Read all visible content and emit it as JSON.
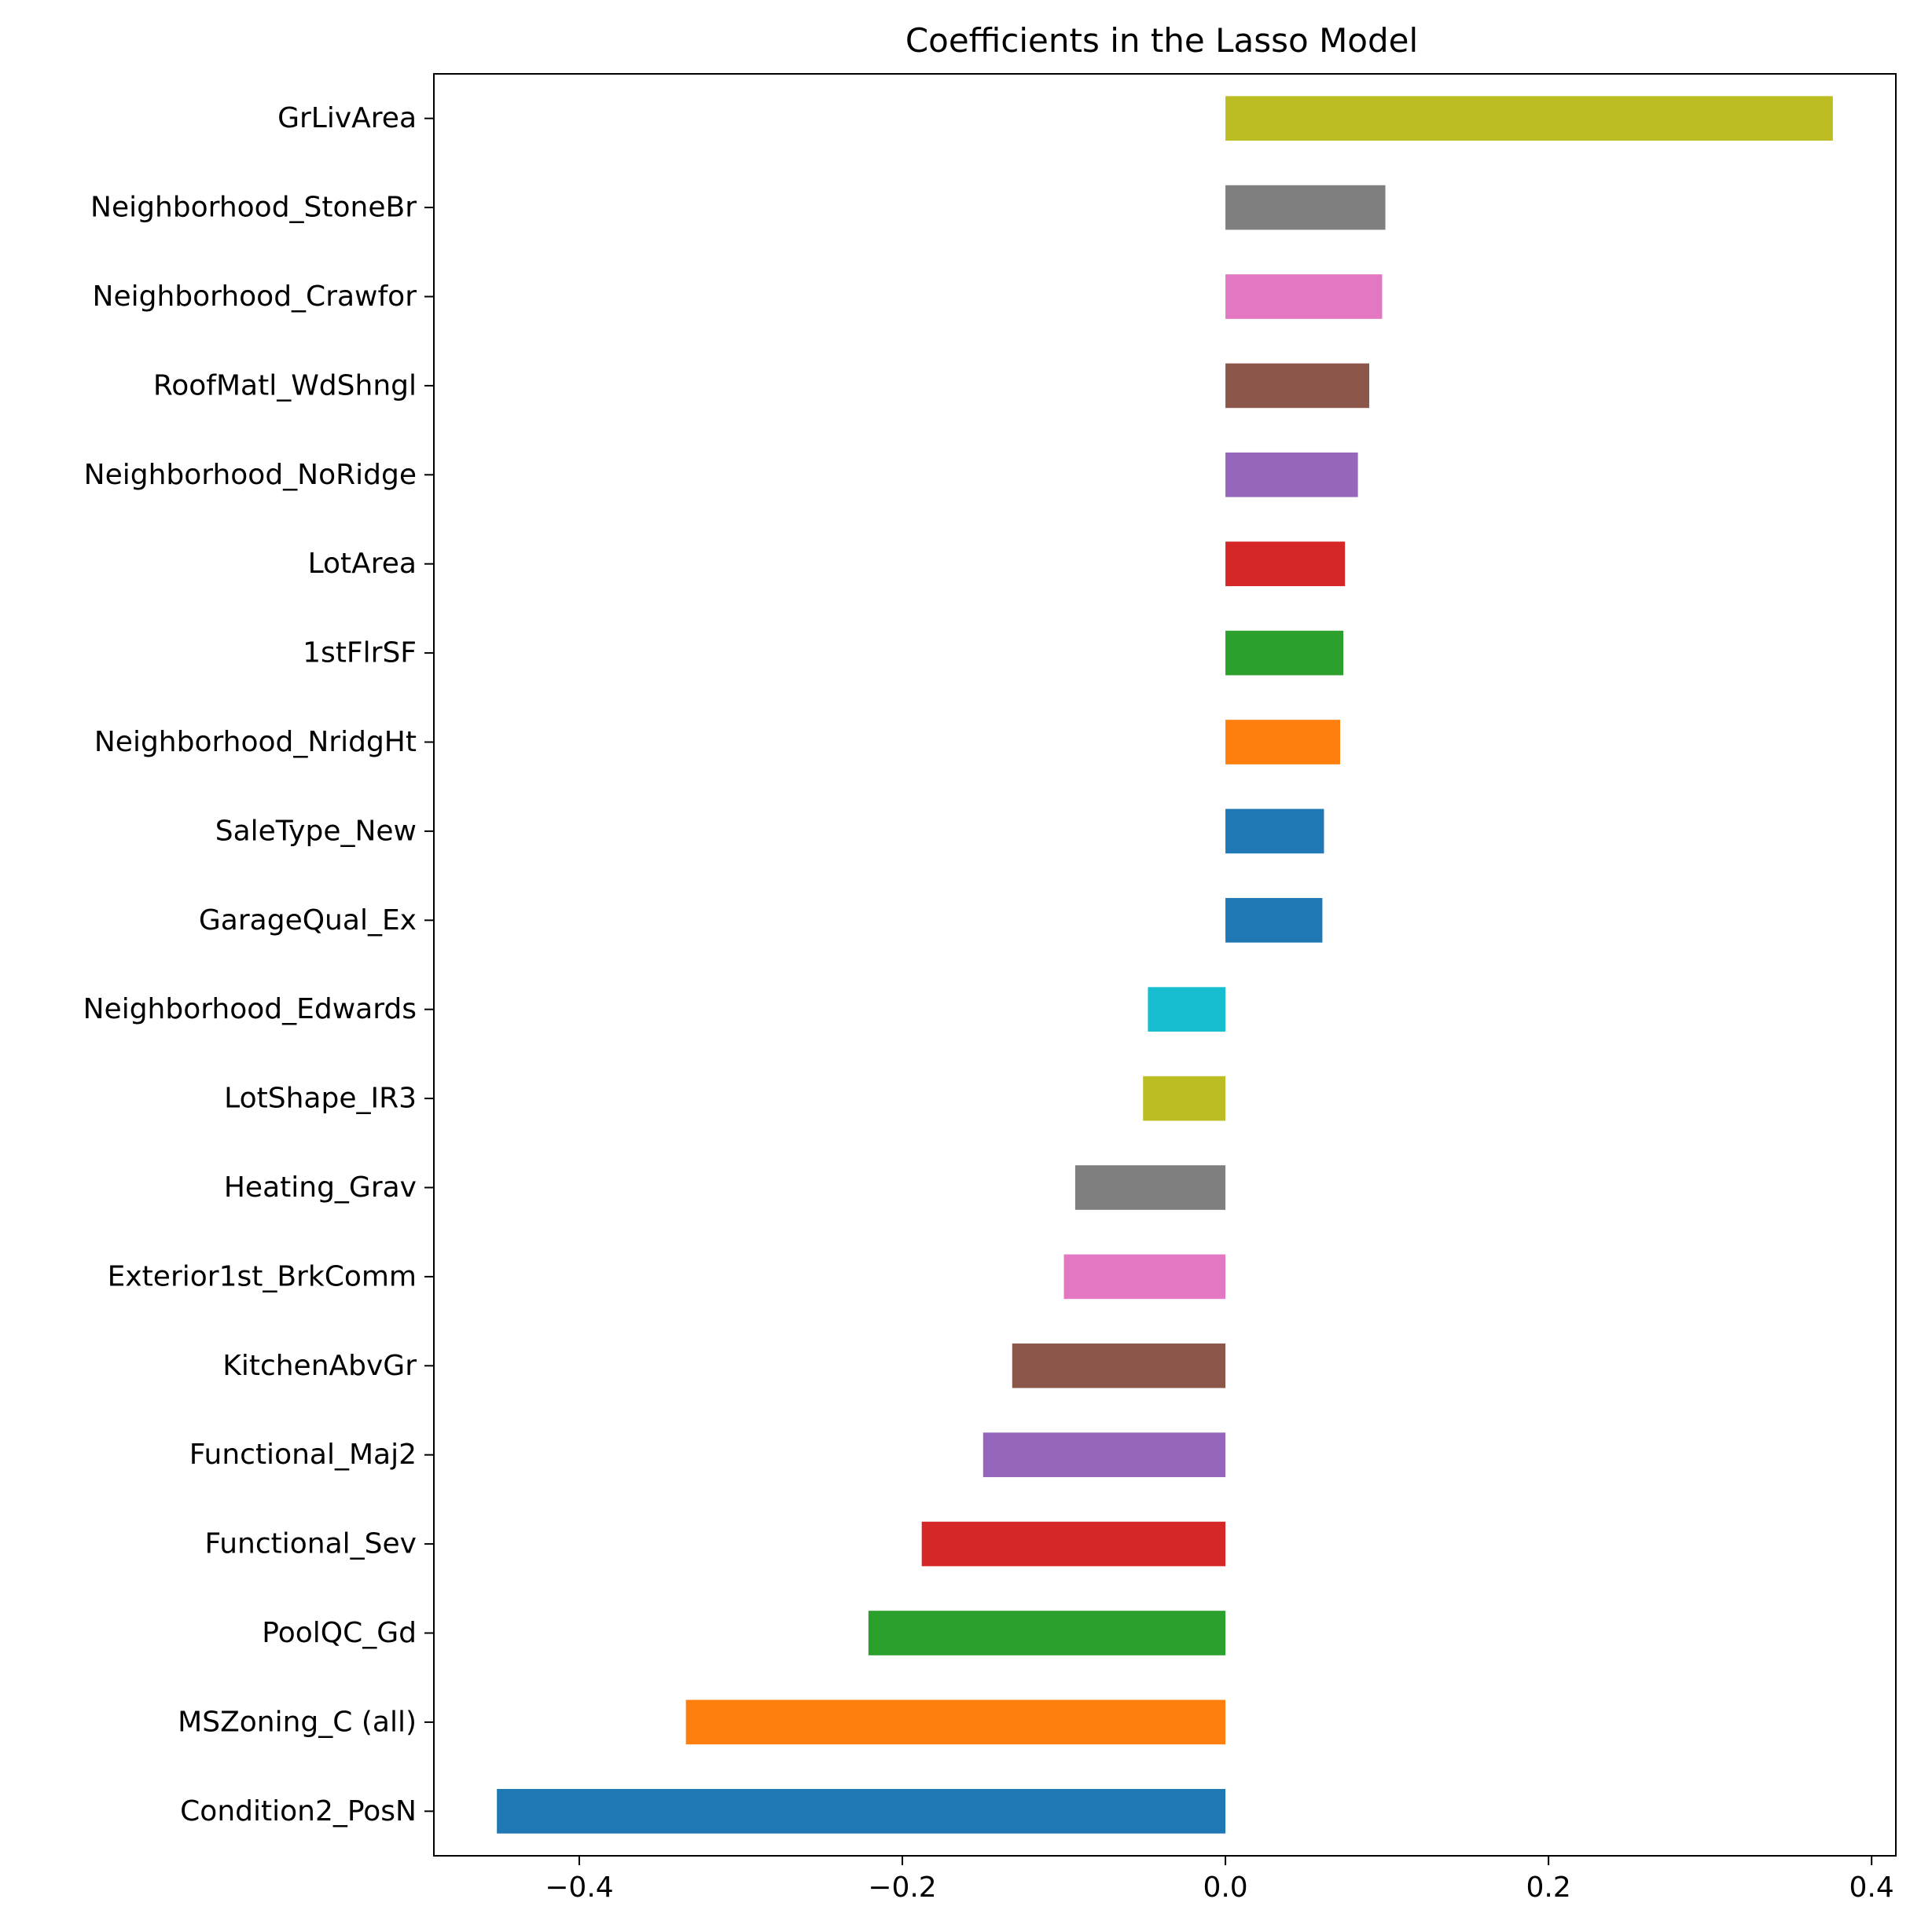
{
  "chart_data": {
    "type": "bar",
    "orientation": "horizontal",
    "title": "Coefficients in the Lasso Model",
    "xlabel": "",
    "ylabel": "",
    "xlim": [
      -0.49,
      0.415
    ],
    "xticks": [
      -0.4,
      -0.2,
      0.0,
      0.2,
      0.4
    ],
    "xtick_labels": [
      "−0.4",
      "−0.2",
      "0.0",
      "0.2",
      "0.4"
    ],
    "grid": false,
    "legend": "none",
    "bars": [
      {
        "label": "GrLivArea",
        "value": 0.376,
        "color": "#bcbd22"
      },
      {
        "label": "Neighborhood_StoneBr",
        "value": 0.099,
        "color": "#7f7f7f"
      },
      {
        "label": "Neighborhood_Crawfor",
        "value": 0.097,
        "color": "#e377c2"
      },
      {
        "label": "RoofMatl_WdShngl",
        "value": 0.089,
        "color": "#8c564b"
      },
      {
        "label": "Neighborhood_NoRidge",
        "value": 0.082,
        "color": "#9467bd"
      },
      {
        "label": "LotArea",
        "value": 0.074,
        "color": "#d62728"
      },
      {
        "label": "1stFlrSF",
        "value": 0.073,
        "color": "#2ca02c"
      },
      {
        "label": "Neighborhood_NridgHt",
        "value": 0.071,
        "color": "#ff7f0e"
      },
      {
        "label": "SaleType_New",
        "value": 0.061,
        "color": "#1f77b4"
      },
      {
        "label": "GarageQual_Ex",
        "value": 0.06,
        "color": "#1f77b4"
      },
      {
        "label": "Neighborhood_Edwards",
        "value": -0.048,
        "color": "#17becf"
      },
      {
        "label": "LotShape_IR3",
        "value": -0.051,
        "color": "#bcbd22"
      },
      {
        "label": "Heating_Grav",
        "value": -0.093,
        "color": "#7f7f7f"
      },
      {
        "label": "Exterior1st_BrkComm",
        "value": -0.1,
        "color": "#e377c2"
      },
      {
        "label": "KitchenAbvGr",
        "value": -0.132,
        "color": "#8c564b"
      },
      {
        "label": "Functional_Maj2",
        "value": -0.15,
        "color": "#9467bd"
      },
      {
        "label": "Functional_Sev",
        "value": -0.188,
        "color": "#d62728"
      },
      {
        "label": "PoolQC_Gd",
        "value": -0.221,
        "color": "#2ca02c"
      },
      {
        "label": "MSZoning_C (all)",
        "value": -0.334,
        "color": "#ff7f0e"
      },
      {
        "label": "Condition2_PosN",
        "value": -0.451,
        "color": "#1f77b4"
      }
    ]
  }
}
